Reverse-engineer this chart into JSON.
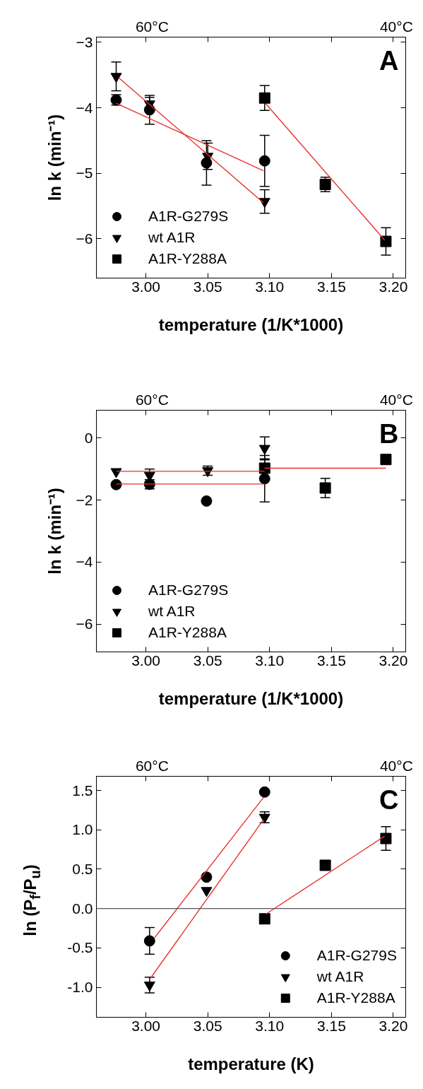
{
  "chart_data": [
    {
      "type": "scatter",
      "annotations": [
        "60°C",
        "40°C",
        "A"
      ],
      "xlabel": "temperature (1/K*1000)",
      "ylabel": "ln k (min⁻¹)",
      "xlim": [
        2.96,
        3.21
      ],
      "xticks": [
        {
          "value": 3.0,
          "label": "3.00"
        },
        {
          "value": 3.05,
          "label": "3.05"
        },
        {
          "value": 3.1,
          "label": "3.10"
        },
        {
          "value": 3.15,
          "label": "3.15"
        },
        {
          "value": 3.2,
          "label": "3.20"
        }
      ],
      "ylim": [
        -6.6,
        -2.92
      ],
      "yticks": [
        -6,
        -5,
        -4,
        -3
      ],
      "grid": false,
      "legend": "bottom left",
      "series": [
        {
          "name": "A1R-G279S",
          "type": "scatter",
          "marker": "circle",
          "color": "#000000",
          "x": [
            2.976,
            3.003,
            3.049,
            3.096
          ],
          "values": [
            -3.88,
            -4.03,
            -4.84,
            -4.81
          ],
          "errors": [
            0.08,
            0.22,
            0.34,
            0.39
          ]
        },
        {
          "name": "wt A1R",
          "type": "scatter",
          "marker": "triangle",
          "color": "#000000",
          "x": [
            2.976,
            3.003,
            3.05,
            3.096
          ],
          "values": [
            -3.52,
            -3.94,
            -4.74,
            -5.43
          ],
          "errors": [
            0.22,
            0.1,
            0.2,
            0.18
          ]
        },
        {
          "name": "A1R-Y288A",
          "type": "scatter",
          "marker": "square",
          "color": "#000000",
          "x": [
            3.096,
            3.145,
            3.194
          ],
          "values": [
            -3.85,
            -5.17,
            -6.04
          ],
          "errors": [
            0.19,
            0.11,
            0.21
          ]
        },
        {
          "type": "line",
          "color": "#e8312f",
          "x": [
            2.976,
            3.095
          ],
          "values": [
            -3.93,
            -4.96
          ]
        },
        {
          "type": "line",
          "color": "#e8312f",
          "x": [
            2.978,
            3.095
          ],
          "values": [
            -3.54,
            -5.45
          ]
        },
        {
          "type": "line",
          "color": "#e8312f",
          "x": [
            3.097,
            3.193
          ],
          "values": [
            -3.94,
            -6.02
          ]
        }
      ]
    },
    {
      "type": "scatter",
      "annotations": [
        "60°C",
        "40°C",
        "B"
      ],
      "xlabel": "temperature (1/K*1000)",
      "ylabel": "ln k (min⁻¹)",
      "xlim": [
        2.96,
        3.21
      ],
      "xticks": [
        {
          "value": 3.0,
          "label": "3.00"
        },
        {
          "value": 3.05,
          "label": "3.05"
        },
        {
          "value": 3.1,
          "label": "3.10"
        },
        {
          "value": 3.15,
          "label": "3.15"
        },
        {
          "value": 3.2,
          "label": "3.20"
        }
      ],
      "ylim": [
        -6.9,
        0.9
      ],
      "yticks": [
        -6,
        -4,
        -2,
        0
      ],
      "grid": false,
      "legend": "bottom left",
      "series": [
        {
          "name": "A1R-G279S",
          "type": "scatter",
          "marker": "circle",
          "color": "#000000",
          "x": [
            2.976,
            3.003,
            3.049,
            3.096
          ],
          "values": [
            -1.5,
            -1.49,
            -2.03,
            -1.31
          ],
          "errors": [
            null,
            0.15,
            null,
            0.75
          ]
        },
        {
          "name": "wt A1R",
          "type": "scatter",
          "marker": "triangle",
          "color": "#000000",
          "x": [
            2.976,
            3.003,
            3.05,
            3.096
          ],
          "values": [
            -1.08,
            -1.2,
            -1.05,
            -0.33
          ],
          "errors": [
            null,
            0.2,
            0.15,
            0.37
          ]
        },
        {
          "name": "A1R-Y288A",
          "type": "scatter",
          "marker": "square",
          "color": "#000000",
          "x": [
            3.096,
            3.145,
            3.194
          ],
          "values": [
            -0.97,
            -1.61,
            -0.69
          ],
          "errors": [
            0.3,
            0.31,
            null
          ]
        },
        {
          "type": "line",
          "color": "#e8312f",
          "x": [
            2.976,
            3.096
          ],
          "values": [
            -1.07,
            -1.07
          ]
        },
        {
          "type": "line",
          "color": "#e8312f",
          "x": [
            2.976,
            3.096
          ],
          "values": [
            -1.48,
            -1.48
          ]
        },
        {
          "type": "line",
          "color": "#e8312f",
          "x": [
            3.096,
            3.194
          ],
          "values": [
            -0.97,
            -0.97
          ]
        }
      ]
    },
    {
      "type": "scatter",
      "annotations": [
        "60°C",
        "40°C",
        "C"
      ],
      "xlabel": "temperature (K)",
      "ylabel": "ln (P$_{f}$/P$_{u}$)",
      "xlim": [
        2.96,
        3.21
      ],
      "xticks": [
        {
          "value": 3.0,
          "label": "3.00"
        },
        {
          "value": 3.05,
          "label": "3.05"
        },
        {
          "value": 3.1,
          "label": "3.10"
        },
        {
          "value": 3.15,
          "label": "3.15"
        },
        {
          "value": 3.2,
          "label": "3.20"
        }
      ],
      "ylim": [
        -1.38,
        1.68
      ],
      "yticks": [
        {
          "value": -1.0,
          "label": "-1.0"
        },
        {
          "value": -0.5,
          "label": "-0.5"
        },
        {
          "value": 0.0,
          "label": "0.0"
        },
        {
          "value": 0.5,
          "label": "0.5"
        },
        {
          "value": 1.0,
          "label": "1.0"
        },
        {
          "value": 1.5,
          "label": "1.5"
        }
      ],
      "grid": false,
      "legend": "bottom right",
      "ref_lines": [
        {
          "axis": "y",
          "value": 0,
          "color": "#555555"
        }
      ],
      "series": [
        {
          "name": "A1R-G279S",
          "type": "scatter",
          "marker": "circle",
          "color": "#000000",
          "x": [
            3.003,
            3.049,
            3.096
          ],
          "values": [
            -0.41,
            0.4,
            1.48
          ],
          "errors": [
            0.17,
            null,
            null
          ]
        },
        {
          "name": "wt A1R",
          "type": "scatter",
          "marker": "triangle",
          "color": "#000000",
          "x": [
            3.003,
            3.049,
            3.096
          ],
          "values": [
            -0.97,
            0.23,
            1.16
          ],
          "errors": [
            0.1,
            null,
            0.07
          ]
        },
        {
          "name": "A1R-Y288A",
          "type": "scatter",
          "marker": "square",
          "color": "#000000",
          "x": [
            3.096,
            3.145,
            3.194
          ],
          "values": [
            -0.13,
            0.55,
            0.89
          ],
          "errors": [
            null,
            null,
            0.15
          ]
        },
        {
          "type": "line",
          "color": "#e8312f",
          "x": [
            3.007,
            3.095
          ],
          "values": [
            -0.37,
            1.41
          ]
        },
        {
          "type": "line",
          "color": "#e8312f",
          "x": [
            3.003,
            3.095
          ],
          "values": [
            -0.9,
            1.13
          ]
        },
        {
          "type": "line",
          "color": "#e8312f",
          "x": [
            3.097,
            3.193
          ],
          "values": [
            -0.07,
            0.92
          ]
        }
      ]
    }
  ]
}
